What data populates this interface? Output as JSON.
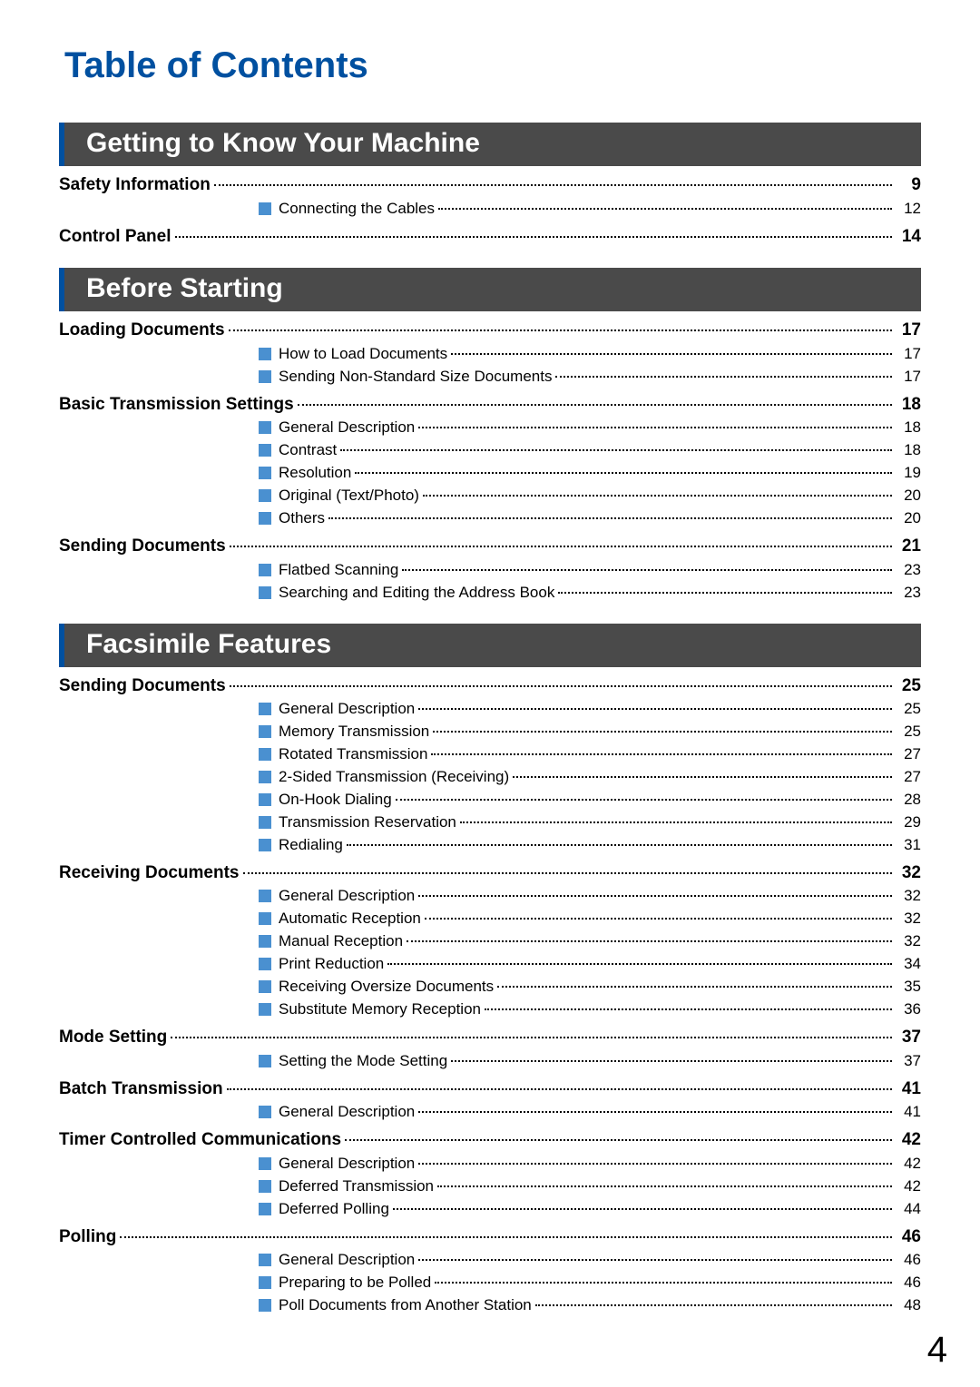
{
  "title": "Table of Contents",
  "page_number": "4",
  "colors": {
    "page_bg": "#ffffff",
    "outer_bg": "#808080",
    "title_color": "#0050a0",
    "section_bg": "#4a4a4a",
    "section_text": "#ffffff",
    "section_accent": "#0050a0",
    "bullet_color": "#4a90d0",
    "text_color": "#000000"
  },
  "sections": [
    {
      "heading": "Getting to Know Your Machine",
      "topics": [
        {
          "label": "Safety Information",
          "page": "9",
          "items": [
            {
              "label": "Connecting the Cables",
              "page": "12"
            }
          ]
        },
        {
          "label": "Control Panel",
          "page": "14",
          "items": []
        }
      ]
    },
    {
      "heading": "Before Starting",
      "topics": [
        {
          "label": "Loading Documents",
          "page": "17",
          "items": [
            {
              "label": "How to Load Documents",
              "page": "17"
            },
            {
              "label": "Sending Non-Standard Size Documents",
              "page": "17"
            }
          ]
        },
        {
          "label": "Basic Transmission Settings",
          "page": "18",
          "items": [
            {
              "label": "General Description",
              "page": "18"
            },
            {
              "label": "Contrast",
              "page": "18"
            },
            {
              "label": "Resolution",
              "page": "19"
            },
            {
              "label": "Original (Text/Photo)",
              "page": "20"
            },
            {
              "label": "Others",
              "page": "20"
            }
          ]
        },
        {
          "label": "Sending Documents",
          "page": "21",
          "items": [
            {
              "label": "Flatbed Scanning",
              "page": "23"
            },
            {
              "label": "Searching and Editing the Address Book",
              "page": "23"
            }
          ]
        }
      ]
    },
    {
      "heading": "Facsimile Features",
      "topics": [
        {
          "label": "Sending Documents",
          "page": "25",
          "items": [
            {
              "label": "General Description",
              "page": "25"
            },
            {
              "label": "Memory Transmission",
              "page": "25"
            },
            {
              "label": "Rotated Transmission",
              "page": "27"
            },
            {
              "label": "2-Sided Transmission (Receiving)",
              "page": "27"
            },
            {
              "label": "On-Hook Dialing",
              "page": "28"
            },
            {
              "label": "Transmission Reservation",
              "page": "29"
            },
            {
              "label": "Redialing",
              "page": "31"
            }
          ]
        },
        {
          "label": "Receiving Documents",
          "page": "32",
          "items": [
            {
              "label": "General Description",
              "page": "32"
            },
            {
              "label": "Automatic Reception",
              "page": "32"
            },
            {
              "label": "Manual Reception",
              "page": "32"
            },
            {
              "label": "Print Reduction",
              "page": "34"
            },
            {
              "label": "Receiving Oversize Documents",
              "page": "35"
            },
            {
              "label": "Substitute Memory Reception",
              "page": "36"
            }
          ]
        },
        {
          "label": "Mode Setting",
          "page": "37",
          "items": [
            {
              "label": "Setting the Mode Setting",
              "page": "37"
            }
          ]
        },
        {
          "label": "Batch Transmission",
          "page": "41",
          "items": [
            {
              "label": "General Description",
              "page": "41"
            }
          ]
        },
        {
          "label": "Timer Controlled Communications",
          "page": "42",
          "items": [
            {
              "label": "General Description",
              "page": "42"
            },
            {
              "label": "Deferred Transmission",
              "page": "42"
            },
            {
              "label": "Deferred Polling",
              "page": "44"
            }
          ]
        },
        {
          "label": "Polling",
          "page": "46",
          "items": [
            {
              "label": "General Description",
              "page": "46"
            },
            {
              "label": "Preparing to be Polled",
              "page": "46"
            },
            {
              "label": "Poll Documents from Another Station",
              "page": "48"
            }
          ]
        }
      ]
    }
  ]
}
